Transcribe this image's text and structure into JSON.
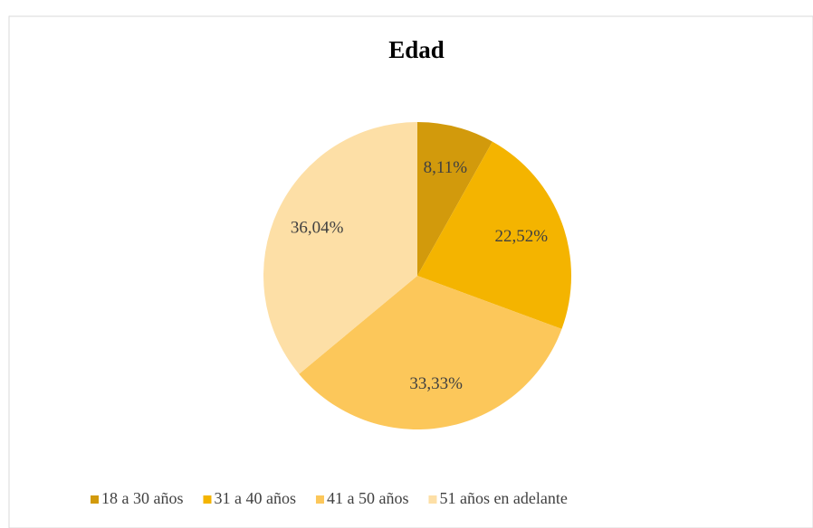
{
  "chart_data": {
    "type": "pie",
    "title": "Edad",
    "categories": [
      "18 a 30 años",
      "31 a 40 años",
      "41 a 50 años",
      "51 años en adelante"
    ],
    "values": [
      8.11,
      22.52,
      33.33,
      36.04
    ],
    "value_labels": [
      "8,11%",
      "22,52%",
      "33,33%",
      "36,04%"
    ],
    "colors": [
      "#d29a0c",
      "#f4b400",
      "#fcc75a",
      "#fddfa6"
    ],
    "legend": "bottom"
  }
}
